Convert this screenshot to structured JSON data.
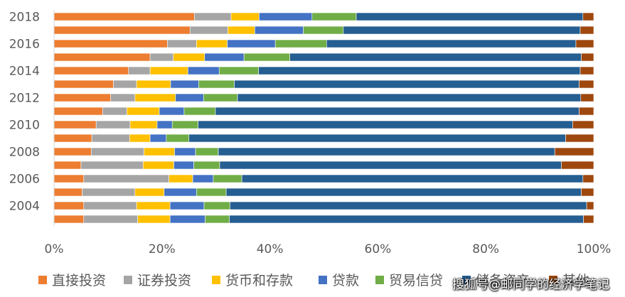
{
  "chart_data": {
    "type": "bar",
    "orientation": "horizontal",
    "stacked": "percent",
    "categories": [
      "2003",
      "2004",
      "2005",
      "2006",
      "2007",
      "2008",
      "2009",
      "2010",
      "2011",
      "2012",
      "2013",
      "2014",
      "2015",
      "2016",
      "2017",
      "2018"
    ],
    "category_labels": [
      "",
      "2004",
      "",
      "2006",
      "",
      "2008",
      "",
      "2010",
      "",
      "2012",
      "",
      "2014",
      "",
      "2016",
      "",
      "2018"
    ],
    "series": [
      {
        "name": "直接投资",
        "color": "#ED7D31",
        "values": [
          5.5,
          5.5,
          5.2,
          5.5,
          5.0,
          6.2,
          7.0,
          7.8,
          9.0,
          10.5,
          11.0,
          13.8,
          17.8,
          21.0,
          25.2,
          26.0
        ]
      },
      {
        "name": "证券投资",
        "color": "#A5A5A5",
        "values": [
          10.0,
          9.8,
          9.8,
          15.8,
          11.5,
          8.8,
          7.0,
          6.3,
          4.5,
          4.5,
          4.3,
          4.0,
          4.3,
          5.4,
          7.0,
          6.8
        ]
      },
      {
        "name": "货币和存款",
        "color": "#FFC000",
        "values": [
          6.0,
          6.2,
          5.4,
          4.4,
          5.7,
          5.1,
          3.8,
          5.0,
          6.0,
          7.5,
          6.3,
          7.0,
          5.8,
          5.7,
          5.0,
          5.2
        ]
      },
      {
        "name": "贷款",
        "color": "#4472C4",
        "values": [
          6.5,
          6.3,
          6.0,
          3.8,
          3.7,
          3.5,
          3.0,
          2.8,
          4.6,
          5.2,
          5.2,
          5.8,
          7.3,
          8.9,
          9.0,
          9.8
        ]
      },
      {
        "name": "贸易信贷",
        "color": "#70AD47",
        "values": [
          4.5,
          4.8,
          5.5,
          5.3,
          4.8,
          3.8,
          4.2,
          4.8,
          5.8,
          6.3,
          6.6,
          7.3,
          8.5,
          9.5,
          7.4,
          8.2
        ]
      },
      {
        "name": "储备资产",
        "color": "#255E91",
        "values": [
          65.6,
          66.1,
          65.8,
          63.2,
          63.3,
          56.1,
          69.8,
          69.4,
          67.4,
          63.6,
          63.9,
          59.6,
          54.0,
          46.2,
          43.9,
          42.0
        ]
      },
      {
        "name": "其他",
        "color": "#9E480E",
        "values": [
          1.9,
          1.3,
          2.3,
          2.0,
          6.0,
          6.5,
          5.2,
          3.9,
          2.7,
          2.4,
          2.7,
          2.5,
          2.3,
          3.3,
          2.5,
          2.0
        ]
      }
    ],
    "xlim": [
      0,
      100
    ],
    "xticks": [
      0,
      20,
      40,
      60,
      80,
      100
    ],
    "xtick_labels": [
      "0%",
      "20%",
      "40%",
      "60%",
      "80%",
      "100%"
    ],
    "legend_position": "bottom",
    "grid": false,
    "title": "",
    "xlabel": "",
    "ylabel": ""
  },
  "legend": {
    "items": [
      {
        "label": "直接投资",
        "color": "#ED7D31"
      },
      {
        "label": "证券投资",
        "color": "#A5A5A5"
      },
      {
        "label": "货币和存款",
        "color": "#FFC000"
      },
      {
        "label": "贷款",
        "color": "#4472C4"
      },
      {
        "label": "贸易信贷",
        "color": "#70AD47"
      },
      {
        "label": "储备资产",
        "color": "#255E91"
      },
      {
        "label": "其他",
        "color": "#9E480E"
      }
    ]
  },
  "watermark": {
    "text": "搜狐号@邮同学的经济学笔记"
  },
  "colors": {
    "axis": "#D9D9D9",
    "text": "#595959",
    "background": "#FFFFFF"
  }
}
